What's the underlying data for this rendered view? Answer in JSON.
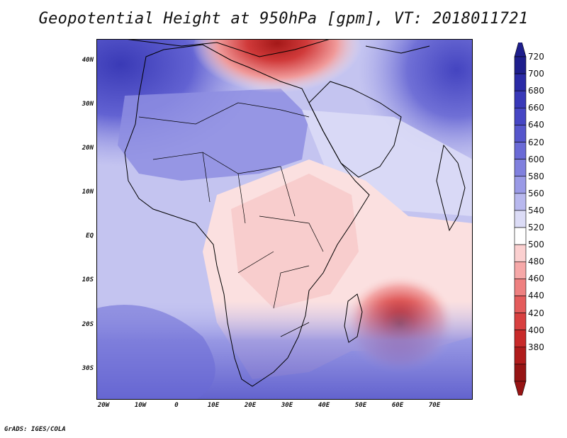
{
  "title": "Geopotential Height at 950hPa [gpm], VT: 2018011721",
  "footer": "GrADS: IGES/COLA",
  "axes": {
    "lat_labels": [
      "40N",
      "30N",
      "20N",
      "10N",
      "EQ",
      "10S",
      "20S",
      "30S"
    ],
    "lon_labels": [
      "20W",
      "10W",
      "0",
      "10E",
      "20E",
      "30E",
      "40E",
      "50E",
      "60E",
      "70E"
    ]
  },
  "colorbar": {
    "levels": [
      "720",
      "700",
      "680",
      "660",
      "640",
      "620",
      "600",
      "580",
      "560",
      "540",
      "520",
      "500",
      "480",
      "460",
      "440",
      "420",
      "400",
      "380"
    ],
    "colors": [
      "#1e1e8c",
      "#2a2aa6",
      "#3838b8",
      "#4646c4",
      "#5656cc",
      "#6a6ad6",
      "#8080de",
      "#9a9ae6",
      "#b8b8ee",
      "#dcdcf6",
      "#ffffff",
      "#fbd0d0",
      "#f6a8a8",
      "#ee8080",
      "#e45c5c",
      "#d84040",
      "#c82a2a",
      "#b01c1c",
      "#961414"
    ]
  },
  "colors": {
    "ocean_base": "#c8c8f2",
    "high_blue": "#5a5ad0",
    "low_red": "#c0282e"
  }
}
